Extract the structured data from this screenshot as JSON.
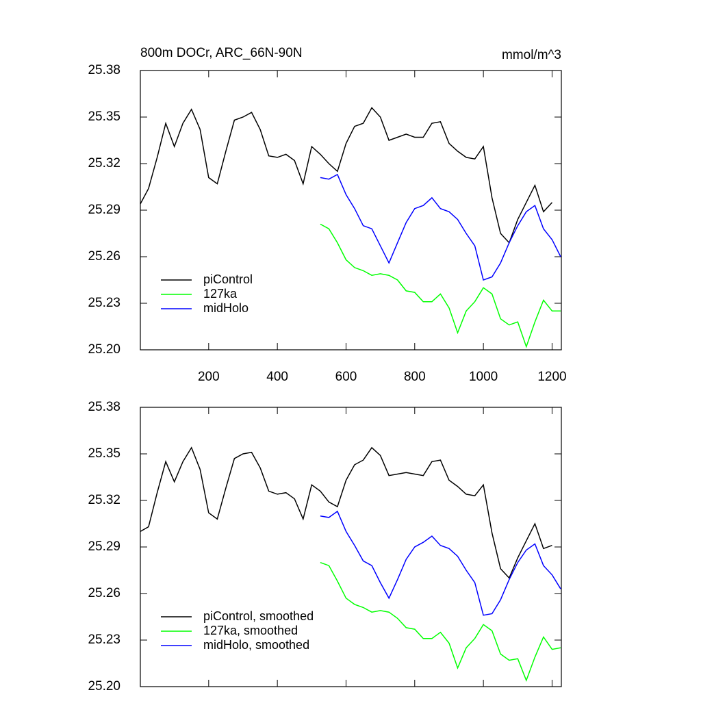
{
  "chart_data": [
    {
      "type": "line",
      "title": "800m DOCr, ARC_66N-90N",
      "units": "mmol/m^3",
      "xlim": [
        1,
        1227
      ],
      "xticks": [
        200,
        400,
        600,
        800,
        1000,
        1200
      ],
      "show_xtick_labels": true,
      "ylim": [
        25.2,
        25.38
      ],
      "yticks": [
        {
          "value": 25.2,
          "label": "25.20"
        },
        25.23,
        25.26,
        25.29,
        25.32,
        25.35,
        25.38
      ],
      "legend": "lower left",
      "x": [
        1,
        25,
        50,
        75,
        100,
        125,
        150,
        175,
        200,
        225,
        250,
        275,
        300,
        325,
        350,
        375,
        400,
        425,
        450,
        475,
        500,
        525,
        550,
        575,
        600,
        625,
        650,
        675,
        700,
        725,
        750,
        775,
        800,
        825,
        850,
        875,
        900,
        925,
        950,
        975,
        1000,
        1025,
        1050,
        1075,
        1100,
        1125,
        1150,
        1175,
        1200,
        1225
      ],
      "series": [
        {
          "name": "piControl",
          "color": "#000000",
          "values": [
            25.294,
            25.304,
            25.324,
            25.346,
            25.331,
            25.346,
            25.355,
            25.342,
            25.311,
            25.307,
            25.328,
            25.348,
            25.35,
            25.353,
            25.342,
            25.325,
            25.324,
            25.326,
            25.322,
            25.307,
            25.331,
            25.326,
            25.32,
            25.315,
            25.333,
            25.344,
            25.346,
            25.356,
            25.35,
            25.335,
            25.337,
            25.339,
            25.337,
            25.337,
            25.346,
            25.347,
            25.333,
            25.328,
            25.324,
            25.323,
            25.331,
            25.298,
            25.275,
            25.269,
            25.284,
            25.295,
            25.306,
            25.289,
            25.295,
            null
          ]
        },
        {
          "name": "127ka",
          "color": "#00ff00",
          "values": [
            null,
            null,
            null,
            null,
            null,
            null,
            null,
            null,
            null,
            null,
            null,
            null,
            null,
            null,
            null,
            null,
            null,
            null,
            null,
            null,
            null,
            25.281,
            25.278,
            25.269,
            25.258,
            25.253,
            25.251,
            25.248,
            25.249,
            25.248,
            25.245,
            25.238,
            25.237,
            25.231,
            25.231,
            25.236,
            25.227,
            25.211,
            25.225,
            25.231,
            25.24,
            25.236,
            25.22,
            25.216,
            25.218,
            25.202,
            25.218,
            25.232,
            25.225,
            25.225
          ]
        },
        {
          "name": "midHolo",
          "color": "#0000ff",
          "values": [
            null,
            null,
            null,
            null,
            null,
            null,
            null,
            null,
            null,
            null,
            null,
            null,
            null,
            null,
            null,
            null,
            null,
            null,
            null,
            null,
            null,
            25.311,
            25.31,
            25.313,
            25.3,
            25.291,
            25.28,
            25.278,
            25.267,
            25.256,
            25.269,
            25.282,
            25.291,
            25.293,
            25.298,
            25.291,
            25.289,
            25.284,
            25.275,
            25.267,
            25.245,
            25.247,
            25.256,
            25.269,
            25.28,
            25.289,
            25.293,
            25.278,
            25.271,
            25.26
          ]
        }
      ]
    },
    {
      "type": "line",
      "xlim": [
        1,
        1227
      ],
      "xticks": [
        200,
        400,
        600,
        800,
        1000,
        1200
      ],
      "show_xtick_labels": false,
      "ylim": [
        25.2,
        25.38
      ],
      "yticks": [
        {
          "value": 25.2,
          "label": "25.20"
        },
        25.23,
        25.26,
        25.29,
        25.32,
        25.35,
        25.38
      ],
      "legend": "lower left",
      "x": [
        1,
        25,
        50,
        75,
        100,
        125,
        150,
        175,
        200,
        225,
        250,
        275,
        300,
        325,
        350,
        375,
        400,
        425,
        450,
        475,
        500,
        525,
        550,
        575,
        600,
        625,
        650,
        675,
        700,
        725,
        750,
        775,
        800,
        825,
        850,
        875,
        900,
        925,
        950,
        975,
        1000,
        1025,
        1050,
        1075,
        1100,
        1125,
        1150,
        1175,
        1200,
        1225
      ],
      "series": [
        {
          "name": "piControl, smoothed",
          "color": "#000000",
          "values": [
            25.3,
            25.303,
            25.325,
            25.345,
            25.332,
            25.345,
            25.354,
            25.34,
            25.312,
            25.308,
            25.328,
            25.347,
            25.35,
            25.351,
            25.341,
            25.326,
            25.324,
            25.325,
            25.321,
            25.308,
            25.33,
            25.326,
            25.319,
            25.316,
            25.333,
            25.343,
            25.346,
            25.354,
            25.349,
            25.336,
            25.337,
            25.338,
            25.337,
            25.336,
            25.345,
            25.346,
            25.333,
            25.329,
            25.324,
            25.323,
            25.33,
            25.299,
            25.276,
            25.27,
            25.283,
            25.294,
            25.305,
            25.289,
            25.291,
            null
          ]
        },
        {
          "name": "127ka, smoothed",
          "color": "#00ff00",
          "values": [
            null,
            null,
            null,
            null,
            null,
            null,
            null,
            null,
            null,
            null,
            null,
            null,
            null,
            null,
            null,
            null,
            null,
            null,
            null,
            null,
            null,
            25.28,
            25.278,
            25.268,
            25.257,
            25.253,
            25.251,
            25.248,
            25.249,
            25.248,
            25.244,
            25.238,
            25.237,
            25.231,
            25.231,
            25.235,
            25.228,
            25.212,
            25.225,
            25.231,
            25.24,
            25.236,
            25.221,
            25.217,
            25.218,
            25.204,
            25.219,
            25.232,
            25.224,
            25.225
          ]
        },
        {
          "name": "midHolo, smoothed",
          "color": "#0000ff",
          "values": [
            null,
            null,
            null,
            null,
            null,
            null,
            null,
            null,
            null,
            null,
            null,
            null,
            null,
            null,
            null,
            null,
            null,
            null,
            null,
            null,
            null,
            25.31,
            25.309,
            25.313,
            25.3,
            25.291,
            25.281,
            25.278,
            25.267,
            25.257,
            25.269,
            25.282,
            25.29,
            25.293,
            25.297,
            25.291,
            25.289,
            25.284,
            25.275,
            25.267,
            25.246,
            25.247,
            25.256,
            25.269,
            25.28,
            25.288,
            25.292,
            25.278,
            25.272,
            25.263
          ]
        }
      ]
    }
  ]
}
